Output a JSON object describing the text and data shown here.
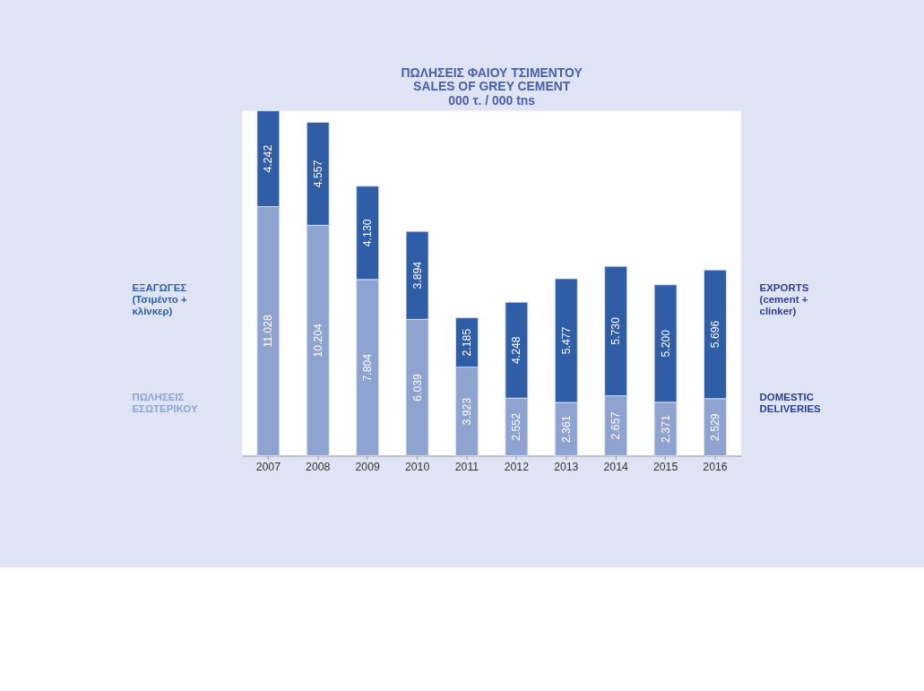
{
  "chart_data": {
    "type": "bar",
    "stacked": true,
    "title": [
      "ΠΩΛΗΣΕΙΣ ΦΑΙΟΥ ΤΣΙΜΕΝΤΟΥ",
      "SALES OF GREY CEMENT",
      "000 τ. / 000 tns"
    ],
    "categories": [
      "2007",
      "2008",
      "2009",
      "2010",
      "2011",
      "2012",
      "2013",
      "2014",
      "2015",
      "2016"
    ],
    "series": [
      {
        "name": "ΠΩΛΗΣΕΙΣ\nΕΣΩΤΕΡΙΚΟΥ",
        "color": "#8fa3d0",
        "values": [
          11.028,
          10.204,
          7.804,
          6.039,
          3.923,
          2.552,
          2.361,
          2.657,
          2.371,
          2.529
        ],
        "value_labels": [
          "11.028",
          "10.204",
          "7.804",
          "6.039",
          "3.923",
          "2.552",
          "2.361",
          "2.657",
          "2.371",
          "2.529"
        ]
      },
      {
        "name": "ΕΞΑΓΩΓΕΣ\n(Τσιμέντο +\nκλίνκερ)",
        "color": "#2f5ea6",
        "values": [
          4.242,
          4.557,
          4.13,
          3.894,
          2.185,
          4.248,
          5.477,
          5.73,
          5.2,
          5.696
        ],
        "value_labels": [
          "4.242",
          "4.557",
          "4.130",
          "3.894",
          "2.185",
          "4.248",
          "5.477",
          "5.730",
          "5.200",
          "5.696"
        ]
      }
    ],
    "annotations": [
      "DOMESTIC\nDELIVERIES",
      "EXPORTS\n(cement +\nclinker)"
    ],
    "grid": false
  }
}
